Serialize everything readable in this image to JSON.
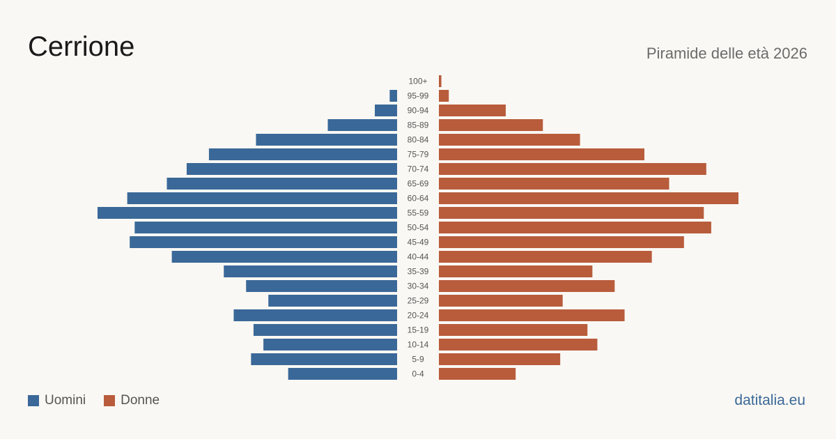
{
  "header": {
    "title": "Cerrione",
    "subtitle": "Piramide delle età 2026"
  },
  "legend": {
    "men_label": "Uomini",
    "women_label": "Donne"
  },
  "colors": {
    "men": "#3a6898",
    "women": "#b85c3c"
  },
  "brand": "datitalia.eu",
  "chart_data": {
    "type": "bar",
    "orientation": "horizontal-pyramid",
    "title": "Piramide delle età 2026",
    "categories": [
      "100+",
      "95-99",
      "90-94",
      "85-89",
      "80-84",
      "75-79",
      "70-74",
      "65-69",
      "60-64",
      "55-59",
      "50-54",
      "45-49",
      "40-44",
      "35-39",
      "30-34",
      "25-29",
      "20-24",
      "15-19",
      "10-14",
      "5-9",
      "0-4"
    ],
    "series": [
      {
        "name": "Uomini",
        "values": [
          0,
          3,
          9,
          28,
          57,
          76,
          85,
          93,
          109,
          121,
          106,
          108,
          91,
          70,
          61,
          52,
          66,
          58,
          54,
          59,
          44
        ]
      },
      {
        "name": "Donne",
        "values": [
          1,
          4,
          27,
          42,
          57,
          83,
          108,
          93,
          121,
          107,
          110,
          99,
          86,
          62,
          71,
          50,
          75,
          60,
          64,
          49,
          31
        ]
      }
    ],
    "grid": false,
    "legend_position": "bottom-left"
  }
}
